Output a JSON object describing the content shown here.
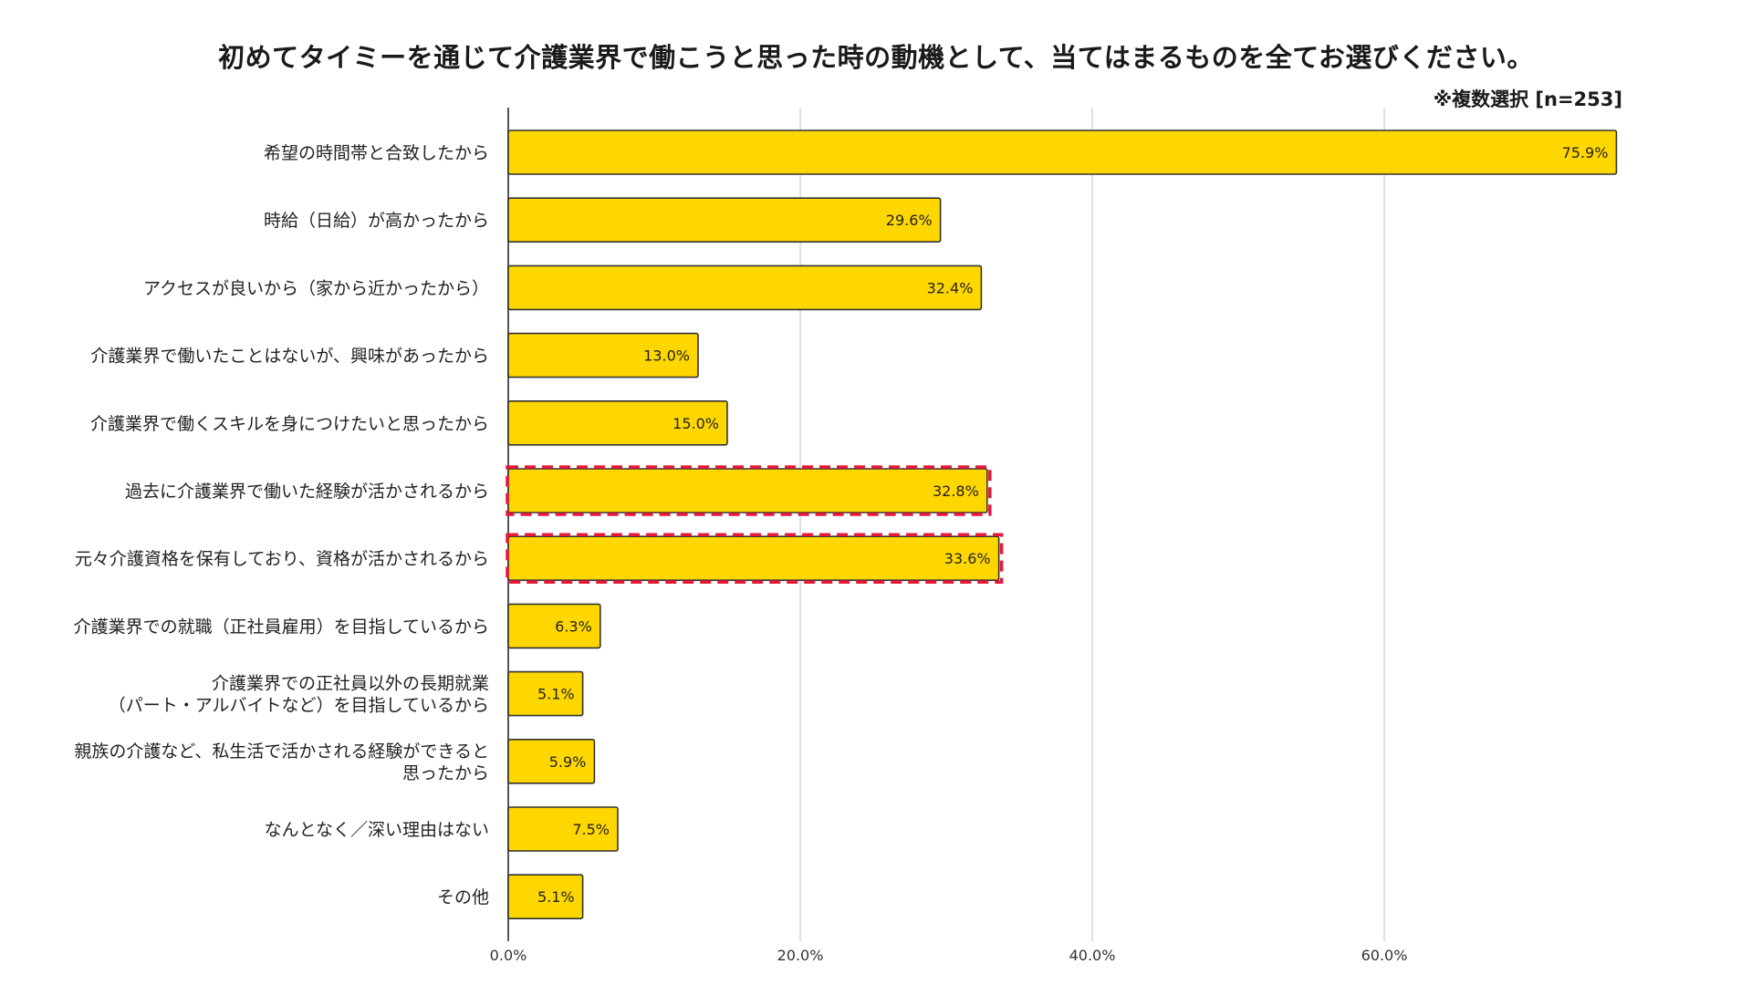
{
  "chart_data": {
    "type": "bar",
    "orientation": "horizontal",
    "title": "初めてタイミーを通じて介護業界で働こうと思った時の動機として、当てはまるものを全てお選びください。",
    "note": "※複数選択 [n=253]",
    "categories": [
      "希望の時間帯と合致したから",
      "時給（日給）が高かったから",
      "アクセスが良いから（家から近かったから）",
      "介護業界で働いたことはないが、興味があったから",
      "介護業界で働くスキルを身につけたいと思ったから",
      "過去に介護業界で働いた経験が活かされるから",
      "元々介護資格を保有しており、資格が活かされるから",
      "介護業界での就職（正社員雇用）を目指しているから",
      "介護業界での正社員以外の長期就業\n（パート・アルバイトなど）を目指しているから",
      "親族の介護など、私生活で活かされる経験ができると\n思ったから",
      "なんとなく／深い理由はない",
      "その他"
    ],
    "values": [
      75.9,
      29.6,
      32.4,
      13.0,
      15.0,
      32.8,
      33.6,
      6.3,
      5.1,
      5.9,
      7.5,
      5.1
    ],
    "value_labels": [
      "75.9%",
      "29.6%",
      "32.4%",
      "13.0%",
      "15.0%",
      "32.8%",
      "33.6%",
      "6.3%",
      "5.1%",
      "5.9%",
      "7.5%",
      "5.1%"
    ],
    "highlighted": [
      false,
      false,
      false,
      false,
      false,
      true,
      true,
      false,
      false,
      false,
      false,
      false
    ],
    "xlim": [
      0,
      80
    ],
    "xticks": [
      0,
      20,
      40,
      60
    ],
    "xtick_labels": [
      "0.0%",
      "20.0%",
      "40.0%",
      "60.0%"
    ],
    "grid": true,
    "colors": {
      "bar_fill": "#FFD700",
      "bar_stroke": "#333333",
      "highlight_stroke": "#E8173C",
      "grid": "#CCCCCC",
      "axis": "#555555"
    }
  }
}
